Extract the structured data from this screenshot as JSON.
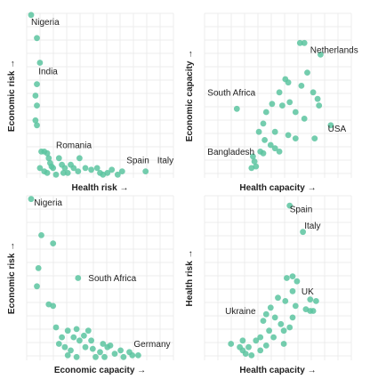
{
  "colors": {
    "point": "#5cc4a0",
    "grid": "#ececec",
    "text": "#222222"
  },
  "chart_data": [
    {
      "type": "scatter",
      "xlabel": "Health risk →",
      "ylabel": "Economic risk →",
      "xlim": [
        0,
        100
      ],
      "ylim": [
        0,
        100
      ],
      "grid": true,
      "labels": [
        {
          "text": "Nigeria",
          "x": 3,
          "y": 93
        },
        {
          "text": "India",
          "x": 8,
          "y": 63
        },
        {
          "text": "Romania",
          "x": 20,
          "y": 18
        },
        {
          "text": "Spain",
          "x": 68,
          "y": 9
        },
        {
          "text": "Italy",
          "x": 89,
          "y": 9
        }
      ],
      "points": [
        [
          3,
          99
        ],
        [
          7,
          85
        ],
        [
          9,
          70
        ],
        [
          7,
          57
        ],
        [
          6,
          50
        ],
        [
          7,
          44
        ],
        [
          6,
          35
        ],
        [
          7,
          32
        ],
        [
          10,
          16
        ],
        [
          12,
          16
        ],
        [
          14,
          15
        ],
        [
          15,
          12
        ],
        [
          17,
          7
        ],
        [
          18,
          6
        ],
        [
          22,
          12
        ],
        [
          24,
          8
        ],
        [
          26,
          6
        ],
        [
          30,
          8
        ],
        [
          32,
          6
        ],
        [
          36,
          12
        ],
        [
          40,
          6
        ],
        [
          44,
          5
        ],
        [
          48,
          6
        ],
        [
          50,
          3
        ],
        [
          52,
          2
        ],
        [
          55,
          3
        ],
        [
          58,
          5
        ],
        [
          62,
          2
        ],
        [
          65,
          4
        ],
        [
          81,
          4
        ],
        [
          9,
          6
        ],
        [
          12,
          4
        ],
        [
          14,
          3
        ],
        [
          20,
          2
        ],
        [
          25,
          3
        ],
        [
          28,
          3
        ],
        [
          35,
          4
        ],
        [
          16,
          9
        ]
      ]
    },
    {
      "type": "scatter",
      "xlabel": "Health capacity →",
      "ylabel": "Economic capacity →",
      "xlim": [
        0,
        100
      ],
      "ylim": [
        0,
        100
      ],
      "grid": true,
      "labels": [
        {
          "text": "Netherlands",
          "x": 72,
          "y": 76
        },
        {
          "text": "South Africa",
          "x": 2,
          "y": 50
        },
        {
          "text": "USA",
          "x": 84,
          "y": 28
        },
        {
          "text": "Bangladesh",
          "x": 2,
          "y": 14
        }
      ],
      "points": [
        [
          65,
          82
        ],
        [
          68,
          82
        ],
        [
          79,
          75
        ],
        [
          70,
          64
        ],
        [
          55,
          60
        ],
        [
          57,
          58
        ],
        [
          66,
          56
        ],
        [
          51,
          52
        ],
        [
          74,
          52
        ],
        [
          78,
          44
        ],
        [
          77,
          48
        ],
        [
          46,
          45
        ],
        [
          58,
          46
        ],
        [
          53,
          44
        ],
        [
          42,
          40
        ],
        [
          62,
          40
        ],
        [
          68,
          36
        ],
        [
          86,
          32
        ],
        [
          40,
          33
        ],
        [
          48,
          28
        ],
        [
          57,
          26
        ],
        [
          37,
          28
        ],
        [
          41,
          23
        ],
        [
          45,
          20
        ],
        [
          48,
          18
        ],
        [
          51,
          16
        ],
        [
          62,
          24
        ],
        [
          75,
          24
        ],
        [
          40,
          15
        ],
        [
          33,
          13
        ],
        [
          34,
          10
        ],
        [
          35,
          7
        ],
        [
          32,
          6
        ],
        [
          38,
          16
        ],
        [
          22,
          42
        ]
      ]
    },
    {
      "type": "scatter",
      "xlabel": "Economic capacity →",
      "ylabel": "Economic risk →",
      "xlim": [
        0,
        100
      ],
      "ylim": [
        0,
        100
      ],
      "grid": true,
      "labels": [
        {
          "text": "Nigeria",
          "x": 5,
          "y": 94
        },
        {
          "text": "South Africa",
          "x": 42,
          "y": 48
        },
        {
          "text": "Germany",
          "x": 73,
          "y": 8
        }
      ],
      "points": [
        [
          3,
          98
        ],
        [
          10,
          76
        ],
        [
          18,
          71
        ],
        [
          8,
          56
        ],
        [
          7,
          45
        ],
        [
          15,
          34
        ],
        [
          18,
          33
        ],
        [
          35,
          50
        ],
        [
          20,
          20
        ],
        [
          24,
          14
        ],
        [
          28,
          18
        ],
        [
          32,
          14
        ],
        [
          34,
          19
        ],
        [
          36,
          12
        ],
        [
          39,
          15
        ],
        [
          42,
          18
        ],
        [
          44,
          12
        ],
        [
          22,
          10
        ],
        [
          26,
          8
        ],
        [
          30,
          6
        ],
        [
          40,
          8
        ],
        [
          45,
          7
        ],
        [
          50,
          5
        ],
        [
          52,
          10
        ],
        [
          55,
          8
        ],
        [
          57,
          9
        ],
        [
          60,
          4
        ],
        [
          64,
          6
        ],
        [
          70,
          5
        ],
        [
          72,
          3
        ],
        [
          76,
          3
        ],
        [
          28,
          3
        ],
        [
          34,
          2
        ],
        [
          47,
          2
        ],
        [
          53,
          2
        ],
        [
          66,
          2
        ]
      ]
    },
    {
      "type": "scatter",
      "xlabel": "Health capacity →",
      "ylabel": "Health risk →",
      "xlim": [
        0,
        100
      ],
      "ylim": [
        0,
        100
      ],
      "grid": true,
      "labels": [
        {
          "text": "Spain",
          "x": 58,
          "y": 90
        },
        {
          "text": "Italy",
          "x": 68,
          "y": 80
        },
        {
          "text": "UK",
          "x": 66,
          "y": 40
        },
        {
          "text": "Ukraine",
          "x": 14,
          "y": 28
        }
      ],
      "points": [
        [
          58,
          94
        ],
        [
          67,
          78
        ],
        [
          56,
          50
        ],
        [
          60,
          51
        ],
        [
          63,
          48
        ],
        [
          60,
          42
        ],
        [
          72,
          37
        ],
        [
          76,
          36
        ],
        [
          69,
          31
        ],
        [
          74,
          30
        ],
        [
          55,
          36
        ],
        [
          50,
          38
        ],
        [
          62,
          33
        ],
        [
          45,
          32
        ],
        [
          42,
          28
        ],
        [
          40,
          24
        ],
        [
          48,
          26
        ],
        [
          52,
          22
        ],
        [
          54,
          18
        ],
        [
          58,
          20
        ],
        [
          44,
          18
        ],
        [
          38,
          14
        ],
        [
          35,
          12
        ],
        [
          30,
          8
        ],
        [
          26,
          6
        ],
        [
          24,
          8
        ],
        [
          28,
          4
        ],
        [
          32,
          3
        ],
        [
          38,
          6
        ],
        [
          42,
          9
        ],
        [
          47,
          14
        ],
        [
          54,
          10
        ],
        [
          18,
          10
        ],
        [
          26,
          12
        ],
        [
          60,
          26
        ],
        [
          72,
          30
        ]
      ]
    }
  ]
}
